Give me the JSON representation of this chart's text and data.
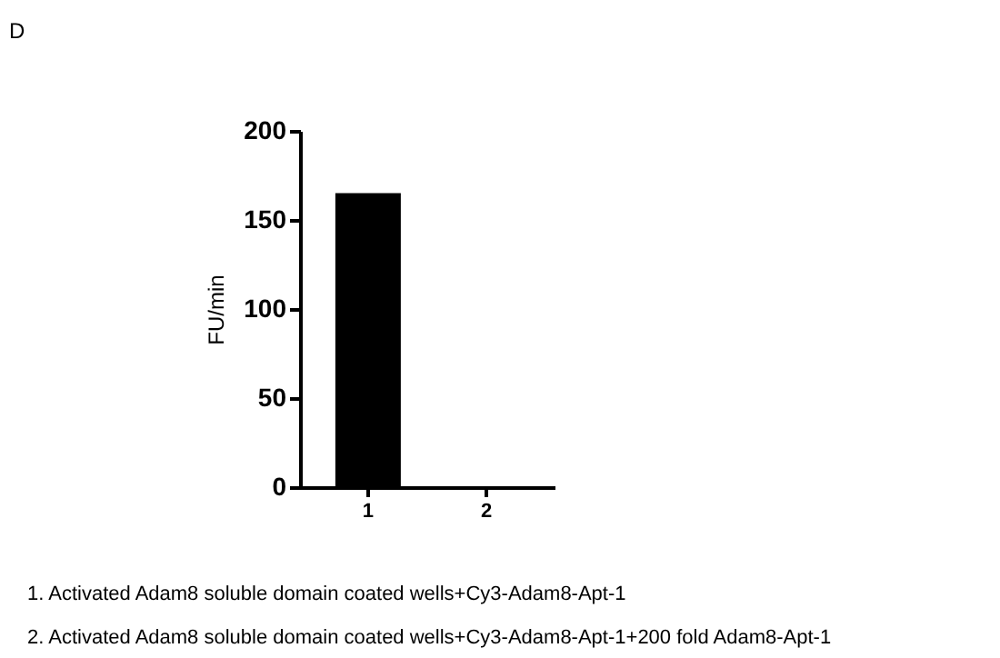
{
  "chart_data": {
    "type": "bar",
    "title": "D",
    "ylabel": "FU/min",
    "categories": [
      "1",
      "2"
    ],
    "values": [
      165,
      0
    ],
    "color": "#000000",
    "ylim": [
      0,
      200
    ],
    "yticks": [
      0,
      50,
      100,
      150,
      200
    ],
    "grid": false,
    "annotations": [
      "1.   Activated Adam8 soluble domain coated wells+Cy3-Adam8-Apt-1",
      "2.   Activated Adam8 soluble domain coated wells+Cy3-Adam8-Apt-1+200 fold Adam8-Apt-1"
    ]
  }
}
